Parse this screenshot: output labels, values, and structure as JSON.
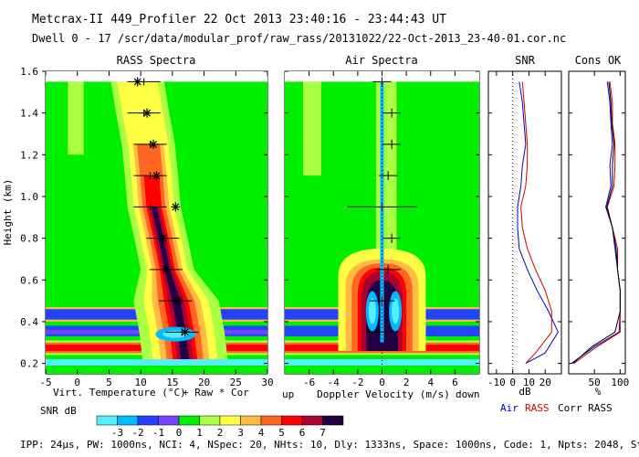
{
  "header": {
    "line1": "Metcrax-II  449_Profiler  22 Oct 2013  23:40:16 - 23:44:43 UT",
    "line2": "Dwell  0 - 17  /scr/data/modular_prof/raw_rass/20131022/22-Oct-2013_23-40-01.cor.nc"
  },
  "footer": "IPP: 24µs, PW: 1000ns, NCI: 4, NSpec: 20, NHts: 10, Dly: 1333ns, Space: 1000ns, Code: 1, Npts: 2048, Step: 1",
  "colors": {
    "bg": "#00ee00",
    "scale": [
      "#55eeff",
      "#00bbff",
      "#2244ff",
      "#7744ff",
      "#00ee00",
      "#aaff44",
      "#ffff44",
      "#ffbb44",
      "#ff6622",
      "#ff0000",
      "#aa0033",
      "#220044"
    ],
    "air": "#0000cc",
    "rass": "#cc0000",
    "corr": "#000000"
  },
  "chart_data": [
    {
      "type": "heatmap",
      "title": "RASS Spectra",
      "xlabel": "Virt. Temperature (°C)",
      "xlabel_note": "+ Raw  * Cor",
      "ylabel": "Height (km)",
      "xlim": [
        -5,
        30
      ],
      "ylim": [
        0.15,
        1.6
      ],
      "xticks": [
        "-5",
        "0",
        "5",
        "10",
        "15",
        "20",
        "25",
        "30"
      ],
      "yticks": [
        "0.2",
        "0.4",
        "0.6",
        "0.8",
        "1.0",
        "1.2",
        "1.4",
        "1.6"
      ],
      "raw_peaks": [
        {
          "h": 1.55,
          "t": 10.5
        },
        {
          "h": 1.4,
          "t": 10.5
        },
        {
          "h": 1.25,
          "t": 11.5
        },
        {
          "h": 1.1,
          "t": 11.5
        },
        {
          "h": 0.95,
          "t": 11.5
        },
        {
          "h": 0.8,
          "t": 13.5
        },
        {
          "h": 0.65,
          "t": 14.0
        },
        {
          "h": 0.5,
          "t": 15.5
        },
        {
          "h": 0.35,
          "t": 16.5
        }
      ],
      "cor_peaks": [
        {
          "h": 1.55,
          "t": 9.5
        },
        {
          "h": 1.4,
          "t": 11.0
        },
        {
          "h": 1.25,
          "t": 12.0
        },
        {
          "h": 1.1,
          "t": 12.5
        },
        {
          "h": 0.95,
          "t": 15.5
        },
        {
          "h": 0.8,
          "t": 13.5
        },
        {
          "h": 0.65,
          "t": 14.0
        },
        {
          "h": 0.5,
          "t": 16.0
        },
        {
          "h": 0.35,
          "t": 17.0
        }
      ]
    },
    {
      "type": "heatmap",
      "title": "Air Spectra",
      "xlabel": "Doppler Velocity (m/s)",
      "xlabel_left": "up",
      "xlabel_right": "down",
      "xlim": [
        -8,
        8
      ],
      "ylim": [
        0.15,
        1.6
      ],
      "xticks": [
        "-6",
        "-4",
        "-2",
        "0",
        "2",
        "4",
        "6"
      ],
      "peaks": [
        {
          "h": 1.55,
          "v": 0.0
        },
        {
          "h": 1.4,
          "v": 0.8
        },
        {
          "h": 1.25,
          "v": 0.8
        },
        {
          "h": 1.1,
          "v": 0.5
        },
        {
          "h": 0.95,
          "v": 0.0
        },
        {
          "h": 0.8,
          "v": 0.8
        },
        {
          "h": 0.65,
          "v": 0.5
        },
        {
          "h": 0.5,
          "v": 0.0
        },
        {
          "h": 0.35,
          "v": -0.2
        }
      ]
    },
    {
      "type": "line",
      "title": "SNR",
      "xlabel": "dB",
      "xlim": [
        -15,
        30
      ],
      "xticks": [
        "-10",
        "0",
        "10",
        "20"
      ],
      "legend": [
        "Air",
        "RASS",
        "Corr RASS"
      ],
      "heights": [
        1.55,
        1.45,
        1.35,
        1.25,
        1.15,
        1.05,
        0.95,
        0.85,
        0.75,
        0.65,
        0.55,
        0.45,
        0.35,
        0.25,
        0.2
      ],
      "series": [
        {
          "name": "Air",
          "values": [
            4,
            6,
            7,
            8,
            6,
            5,
            3,
            3,
            4,
            9,
            15,
            22,
            28,
            20,
            8
          ]
        },
        {
          "name": "RASS",
          "values": [
            6,
            7,
            8,
            9,
            9,
            8,
            5,
            6,
            9,
            14,
            20,
            24,
            24,
            14,
            8
          ]
        }
      ]
    },
    {
      "type": "line",
      "title": "Cons OK",
      "xlabel": "%",
      "xlim": [
        0,
        110
      ],
      "xticks": [
        "50",
        "100"
      ],
      "heights": [
        1.55,
        1.45,
        1.35,
        1.25,
        1.15,
        1.05,
        0.95,
        0.85,
        0.75,
        0.65,
        0.55,
        0.45,
        0.35,
        0.28,
        0.2
      ],
      "series": [
        {
          "name": "Air",
          "values": [
            75,
            80,
            82,
            85,
            80,
            82,
            72,
            85,
            90,
            95,
            100,
            100,
            98,
            50,
            5
          ]
        },
        {
          "name": "RASS",
          "values": [
            80,
            85,
            85,
            90,
            90,
            88,
            75,
            85,
            95,
            95,
            100,
            100,
            100,
            55,
            10
          ]
        },
        {
          "name": "Corr RASS",
          "values": [
            78,
            82,
            84,
            88,
            85,
            85,
            74,
            85,
            92,
            95,
            100,
            100,
            90,
            45,
            8
          ]
        }
      ]
    }
  ],
  "colorbar": {
    "label": "SNR dB",
    "ticks": [
      "-3",
      "-2",
      "-1",
      "0",
      "1",
      "2",
      "3",
      "4",
      "5",
      "6",
      "7"
    ]
  }
}
